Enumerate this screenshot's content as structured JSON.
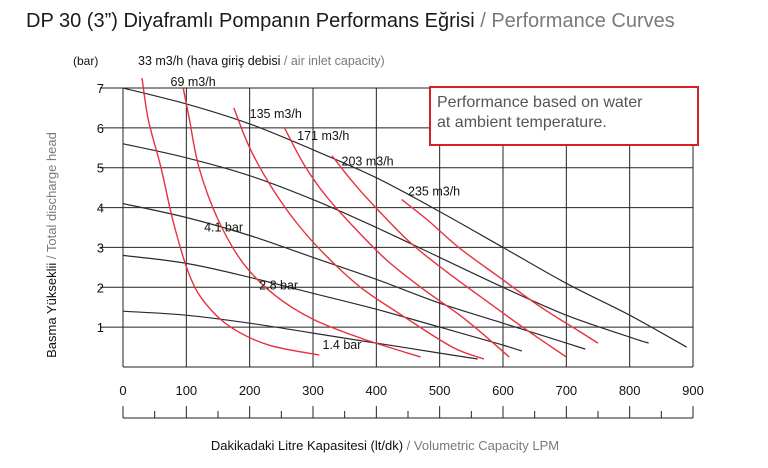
{
  "title": {
    "main": "DP 30 (3”) Diyaframlı Pompanın Performans Eğrisi",
    "separator": " / ",
    "sub": "Performance Curves"
  },
  "note": {
    "line1": "Performance based on water",
    "line2": "at ambient temperature."
  },
  "air_capacity_label": {
    "main": "33 m3/h (hava giriş debisi",
    "separator": " / ",
    "sub": "air inlet capacity)"
  },
  "colors": {
    "pressure_curves": "#2b2b2b",
    "air_curves": "#e8313f",
    "grid": "#222222",
    "note_border": "#d41f26"
  },
  "chart_data": {
    "type": "line",
    "title": "DP 30 (3”) Diyaframlı Pompanın Performans Eğrisi / Performance Curves",
    "xlabel": {
      "main": "Dakikadaki Litre Kapasitesi (lt/dk)",
      "separator": " / ",
      "sub": "Volumetric Capacity LPM"
    },
    "ylabel": {
      "main": "Basma Yükseklii",
      "separator": " / ",
      "sub": "Total discharge head"
    },
    "yunit": "(bar)",
    "xlim": [
      0,
      900
    ],
    "ylim": [
      0,
      7
    ],
    "xticks": [
      "0",
      "100",
      "200",
      "300",
      "400",
      "500",
      "600",
      "700",
      "800",
      "900"
    ],
    "yticks": [
      "1",
      "2",
      "3",
      "4",
      "5",
      "6",
      "7"
    ],
    "grid": true,
    "pressure_series": [
      {
        "name": "7 bar",
        "label": "",
        "points": [
          [
            0,
            7.0
          ],
          [
            100,
            6.6
          ],
          [
            200,
            6.1
          ],
          [
            300,
            5.45
          ],
          [
            400,
            4.75
          ],
          [
            500,
            3.9
          ],
          [
            600,
            3.0
          ],
          [
            700,
            2.1
          ],
          [
            800,
            1.3
          ],
          [
            890,
            0.5
          ]
        ]
      },
      {
        "name": "5.6 bar",
        "label": "",
        "points": [
          [
            0,
            5.6
          ],
          [
            100,
            5.25
          ],
          [
            200,
            4.8
          ],
          [
            300,
            4.2
          ],
          [
            400,
            3.5
          ],
          [
            500,
            2.75
          ],
          [
            600,
            2.0
          ],
          [
            700,
            1.3
          ],
          [
            800,
            0.75
          ],
          [
            830,
            0.6
          ]
        ]
      },
      {
        "name": "4.1 bar",
        "label": "4.1 bar",
        "points": [
          [
            0,
            4.1
          ],
          [
            100,
            3.75
          ],
          [
            200,
            3.3
          ],
          [
            300,
            2.75
          ],
          [
            400,
            2.2
          ],
          [
            500,
            1.6
          ],
          [
            600,
            1.1
          ],
          [
            700,
            0.6
          ],
          [
            730,
            0.45
          ]
        ]
      },
      {
        "name": "2.8 bar",
        "label": "2.8 bar",
        "points": [
          [
            0,
            2.8
          ],
          [
            100,
            2.6
          ],
          [
            200,
            2.25
          ],
          [
            300,
            1.85
          ],
          [
            400,
            1.45
          ],
          [
            500,
            1.0
          ],
          [
            600,
            0.55
          ],
          [
            630,
            0.4
          ]
        ]
      },
      {
        "name": "1.4 bar",
        "label": "1.4 bar",
        "points": [
          [
            0,
            1.4
          ],
          [
            100,
            1.3
          ],
          [
            200,
            1.1
          ],
          [
            300,
            0.85
          ],
          [
            400,
            0.6
          ],
          [
            500,
            0.35
          ],
          [
            560,
            0.2
          ]
        ]
      }
    ],
    "air_series": [
      {
        "name": "33 m3/h",
        "label": "",
        "points": [
          [
            30,
            7.25
          ],
          [
            40,
            6.2
          ],
          [
            60,
            5.0
          ],
          [
            80,
            3.6
          ],
          [
            105,
            2.3
          ],
          [
            130,
            1.6
          ],
          [
            170,
            1.0
          ],
          [
            230,
            0.55
          ],
          [
            310,
            0.3
          ]
        ]
      },
      {
        "name": "69 m3/h",
        "label": "69 m3/h",
        "points": [
          [
            95,
            7.0
          ],
          [
            105,
            6.2
          ],
          [
            120,
            5.0
          ],
          [
            150,
            3.7
          ],
          [
            190,
            2.6
          ],
          [
            240,
            1.8
          ],
          [
            300,
            1.2
          ],
          [
            380,
            0.7
          ],
          [
            470,
            0.25
          ]
        ]
      },
      {
        "name": "135 m3/h",
        "label": "135 m3/h",
        "points": [
          [
            175,
            6.5
          ],
          [
            200,
            5.5
          ],
          [
            235,
            4.5
          ],
          [
            275,
            3.6
          ],
          [
            320,
            2.8
          ],
          [
            375,
            2.0
          ],
          [
            440,
            1.3
          ],
          [
            520,
            0.5
          ],
          [
            570,
            0.2
          ]
        ]
      },
      {
        "name": "171 m3/h",
        "label": "171 m3/h",
        "points": [
          [
            255,
            6.0
          ],
          [
            285,
            5.1
          ],
          [
            320,
            4.3
          ],
          [
            365,
            3.5
          ],
          [
            415,
            2.7
          ],
          [
            470,
            2.0
          ],
          [
            540,
            1.2
          ],
          [
            610,
            0.25
          ]
        ]
      },
      {
        "name": "203 m3/h",
        "label": "203 m3/h",
        "points": [
          [
            330,
            5.3
          ],
          [
            365,
            4.6
          ],
          [
            405,
            3.9
          ],
          [
            455,
            3.1
          ],
          [
            510,
            2.4
          ],
          [
            570,
            1.7
          ],
          [
            640,
            0.9
          ],
          [
            700,
            0.25
          ]
        ]
      },
      {
        "name": "235 m3/h",
        "label": "235 m3/h",
        "points": [
          [
            440,
            4.2
          ],
          [
            480,
            3.7
          ],
          [
            530,
            3.0
          ],
          [
            590,
            2.3
          ],
          [
            660,
            1.5
          ],
          [
            720,
            0.9
          ],
          [
            750,
            0.6
          ]
        ]
      }
    ]
  }
}
